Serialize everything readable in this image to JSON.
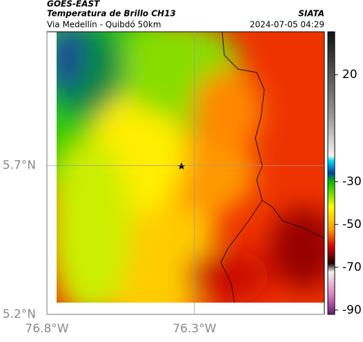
{
  "header": {
    "source": "GOES-EAST",
    "title": "Temperatura de Brillo CH13",
    "subtitle": "Via Medellín - Quibdó 50km",
    "organization": "SIATA",
    "timestamp": "2024-07-05 04:29"
  },
  "map": {
    "xlim": [
      -76.8,
      -75.86
    ],
    "ylim": [
      5.2,
      6.15
    ],
    "xticks": [
      {
        "value": -76.8,
        "label": "76.8°W"
      },
      {
        "value": -76.3,
        "label": "76.3°W"
      }
    ],
    "yticks": [
      {
        "value": 5.7,
        "label": "5.7°N"
      },
      {
        "value": 5.2,
        "label": "5.2°N"
      }
    ],
    "grid": true
  },
  "colorbar": {
    "lim": [
      -92,
      40
    ],
    "ticks": [
      20,
      -30,
      -50,
      -70,
      -90
    ]
  }
}
